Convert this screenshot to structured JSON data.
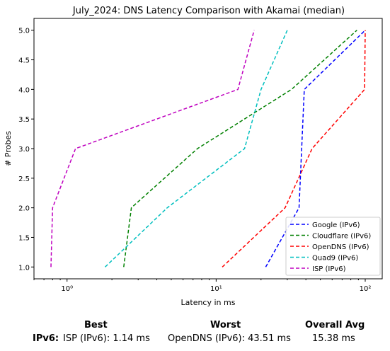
{
  "chart_data": {
    "type": "line",
    "title": "July_2024: DNS Latency Comparison with Akamai (median)",
    "xlabel": "Latency in ms",
    "ylabel": "# Probes",
    "xscale": "log",
    "xlim": [
      0.6,
      130
    ],
    "ylim": [
      0.8,
      5.2
    ],
    "xticks": [
      {
        "value": 1,
        "label": "10⁰"
      },
      {
        "value": 10,
        "label": "10¹"
      },
      {
        "value": 100,
        "label": "10²"
      }
    ],
    "yticks": [
      "1.0",
      "1.5",
      "2.0",
      "2.5",
      "3.0",
      "3.5",
      "4.0",
      "4.5",
      "5.0"
    ],
    "grid": false,
    "legend_position": "bottom-right",
    "series": [
      {
        "name": "Google (IPv6)",
        "color": "#0000ff",
        "x": [
          21.5,
          36,
          39,
          100
        ],
        "y": [
          1,
          2,
          4,
          5
        ]
      },
      {
        "name": "Cloudflare (IPv6)",
        "color": "#008000",
        "x": [
          2.4,
          2.7,
          7.5,
          32,
          88
        ],
        "y": [
          1,
          2,
          3,
          4,
          5
        ]
      },
      {
        "name": "OpenDNS (IPv6)",
        "color": "#ff0000",
        "x": [
          11,
          29,
          44,
          99,
          100
        ],
        "y": [
          1,
          2,
          3,
          4,
          5
        ]
      },
      {
        "name": "Quad9 (IPv6)",
        "color": "#00bfbf",
        "x": [
          1.8,
          4.7,
          15.5,
          20,
          30
        ],
        "y": [
          1,
          2,
          3,
          4,
          5
        ]
      },
      {
        "name": "ISP (IPv6)",
        "color": "#bf00bf",
        "x": [
          0.78,
          0.8,
          1.14,
          14,
          18
        ],
        "y": [
          1,
          2,
          3,
          4,
          5
        ]
      }
    ]
  },
  "summary": {
    "headers": {
      "best": "Best",
      "worst": "Worst",
      "overall": "Overall Avg"
    },
    "row_label": "IPv6:",
    "best": "ISP (IPv6): 1.14 ms",
    "worst": "OpenDNS (IPv6): 43.51 ms",
    "overall": "15.38 ms"
  }
}
